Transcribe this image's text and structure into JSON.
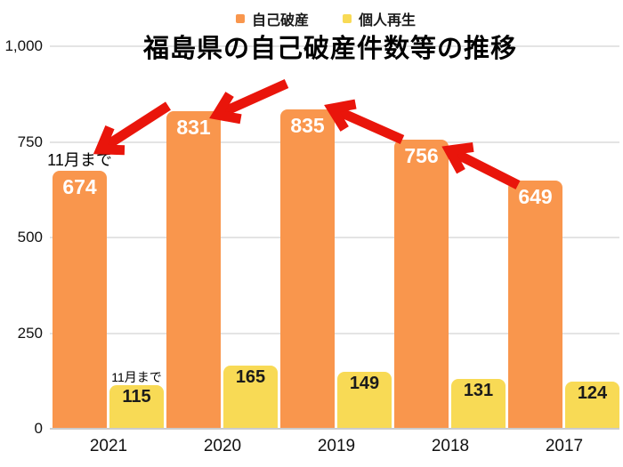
{
  "chart_data": {
    "type": "bar",
    "title": "福島県の自己破産件数等の推移",
    "categories": [
      "2021",
      "2020",
      "2019",
      "2018",
      "2017"
    ],
    "series": [
      {
        "key": "bankruptcy",
        "name": "自己破産",
        "color": "#f9964d",
        "value_color": "#ffffff",
        "values": [
          674,
          831,
          835,
          756,
          649
        ]
      },
      {
        "key": "rehabilitation",
        "name": "個人再生",
        "color": "#f8da55",
        "value_color": "#1b1b1b",
        "values": [
          115,
          165,
          149,
          131,
          124
        ]
      }
    ],
    "ylim": [
      0,
      1000
    ],
    "ytick_values": [
      0,
      250,
      500,
      750,
      1000
    ],
    "ytick_labels": [
      "0",
      "250",
      "500",
      "750",
      "1,000"
    ],
    "grid": true,
    "legend_position": "top-center",
    "annotations": [
      {
        "text": "11月まで",
        "category": "2021",
        "series": 0
      },
      {
        "text": "11月まで",
        "category": "2021",
        "series": 1
      }
    ],
    "arrows": {
      "color": "#e9150b",
      "count": 4,
      "points_to": [
        "2021",
        "2020",
        "2019",
        "2018"
      ]
    }
  }
}
